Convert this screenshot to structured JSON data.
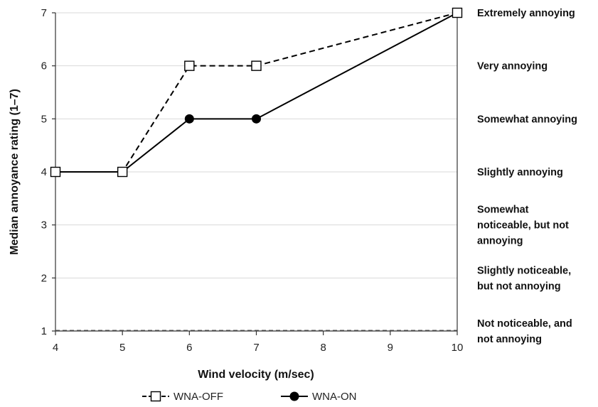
{
  "chart_data": {
    "type": "line",
    "xlabel": "Wind velocity (m/sec)",
    "ylabel": "Median annoyance rating (1–7)",
    "xlim": [
      4,
      10
    ],
    "ylim": [
      1,
      7
    ],
    "x_ticks": [
      "4",
      "5",
      "6",
      "7",
      "8",
      "9",
      "10"
    ],
    "y_ticks": [
      "1",
      "2",
      "3",
      "4",
      "5",
      "6",
      "7"
    ],
    "grid": "horizontal",
    "legend_position": "bottom",
    "series": [
      {
        "name": "WNA-OFF",
        "x": [
          4,
          5,
          6,
          7,
          10
        ],
        "y": [
          4,
          4,
          6,
          6,
          7
        ],
        "style": "dashed",
        "marker": "open-square",
        "color": "#000000"
      },
      {
        "name": "WNA-ON",
        "x": [
          4,
          5,
          6,
          7,
          10
        ],
        "y": [
          4,
          4,
          5,
          5,
          7
        ],
        "style": "solid",
        "marker": "filled-circle",
        "color": "#000000"
      }
    ],
    "right_labels": [
      {
        "y": 7,
        "lines": [
          "Extremely annoying"
        ]
      },
      {
        "y": 6,
        "lines": [
          "Very annoying"
        ]
      },
      {
        "y": 5,
        "lines": [
          "Somewhat annoying"
        ]
      },
      {
        "y": 4,
        "lines": [
          "Slightly annoying"
        ]
      },
      {
        "y": 3,
        "lines": [
          "Somewhat",
          "noticeable, but not",
          "annoying"
        ]
      },
      {
        "y": 2,
        "lines": [
          "Slightly noticeable,",
          "but not annoying"
        ]
      },
      {
        "y": 1,
        "lines": [
          "Not noticeable, and",
          "not annoying"
        ]
      }
    ]
  }
}
